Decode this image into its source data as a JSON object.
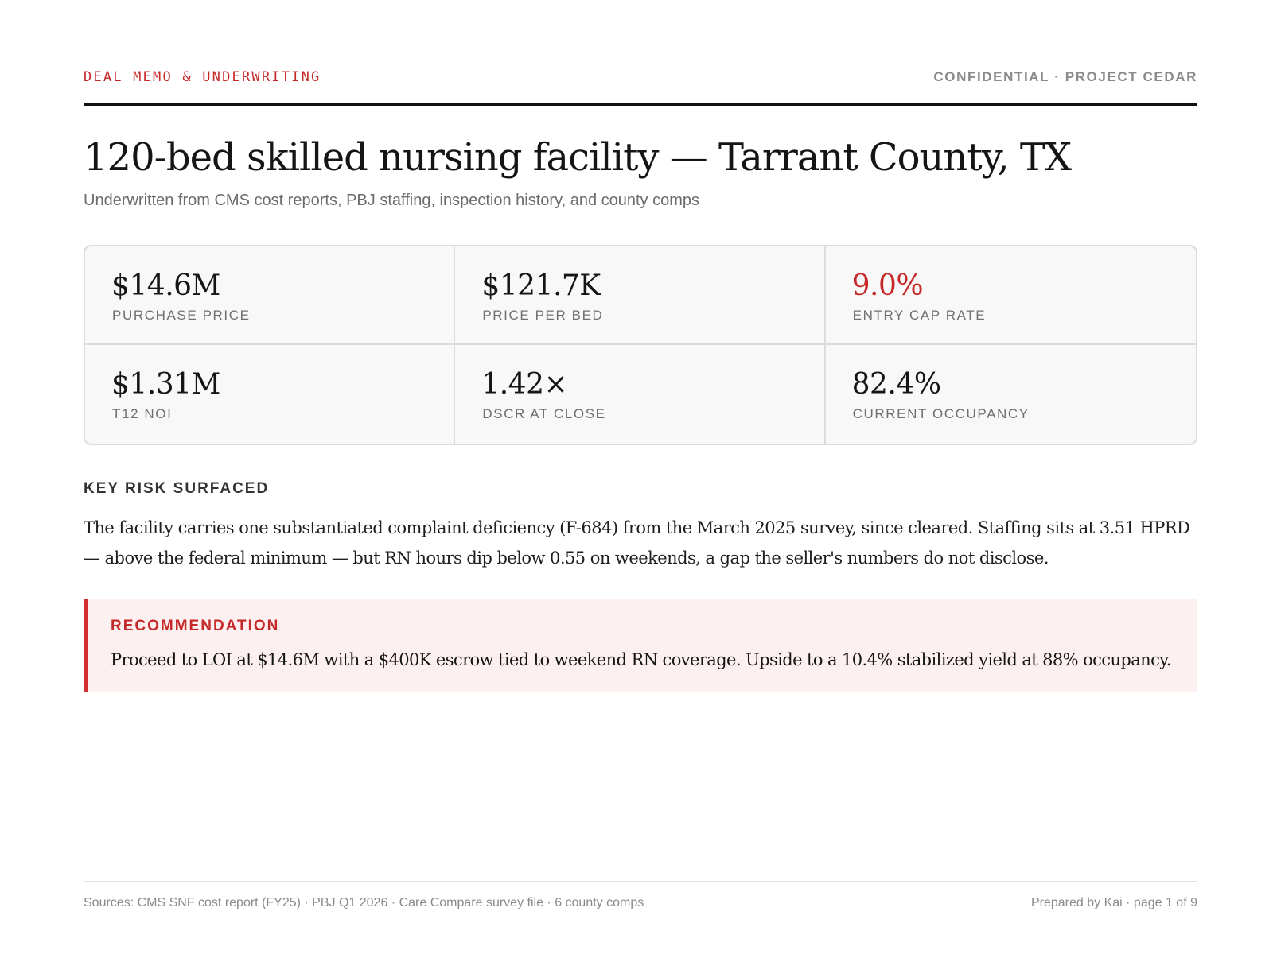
{
  "header": {
    "kicker": "DEAL MEMO & UNDERWRITING",
    "confidential": "CONFIDENTIAL · PROJECT CEDAR"
  },
  "title": "120-bed skilled nursing facility — Tarrant County, TX",
  "subtitle": "Underwritten from CMS cost reports, PBJ staffing, inspection history, and county comps",
  "colors": {
    "accent": "#c62828"
  },
  "kpis": [
    {
      "value": "$14.6M",
      "label": "PURCHASE PRICE"
    },
    {
      "value": "$121.7K",
      "label": "PRICE PER BED"
    },
    {
      "value": "9.0%",
      "label": "ENTRY CAP RATE"
    },
    {
      "value": "$1.31M",
      "label": "T12 NOI"
    },
    {
      "value": "1.42×",
      "label": "DSCR AT CLOSE"
    },
    {
      "value": "82.4%",
      "label": "CURRENT OCCUPANCY"
    }
  ],
  "risk": {
    "heading": "KEY RISK SURFACED",
    "text": "The facility carries one substantiated complaint deficiency (F-684) from the March 2025 survey, since cleared. Staffing sits at 3.51 HPRD — above the federal minimum — but RN hours dip below 0.55 on weekends, a gap the seller's numbers do not disclose."
  },
  "recommendation": {
    "heading": "RECOMMENDATION",
    "text": "Proceed to LOI at $14.6M with a $400K escrow tied to weekend RN coverage. Upside to a 10.4% stabilized yield at 88% occupancy."
  },
  "footer": {
    "sources": "Sources: CMS SNF cost report (FY25) · PBJ Q1 2026 · Care Compare survey file · 6 county comps",
    "prepared": "Prepared by Kai · page 1 of 9"
  }
}
